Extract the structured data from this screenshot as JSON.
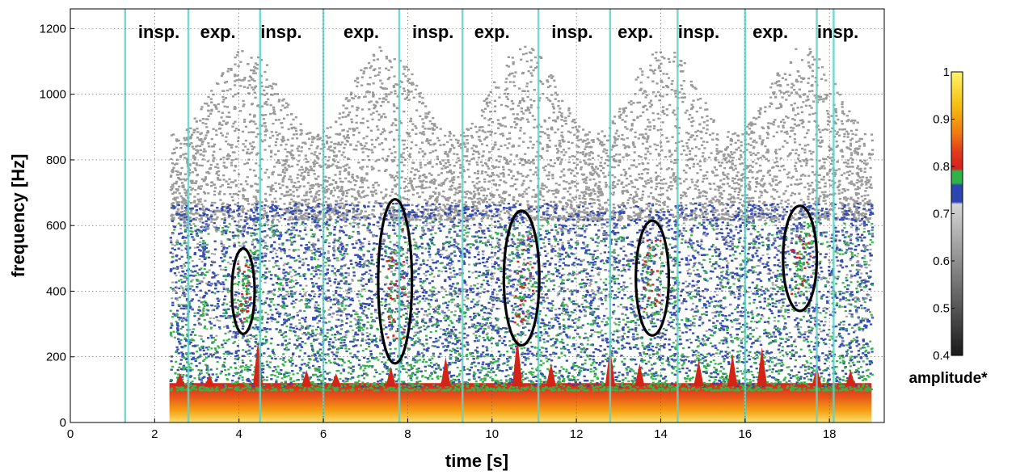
{
  "chart_data": {
    "type": "heatmap",
    "title": "",
    "xlabel": "time [s]",
    "ylabel": "frequency [Hz]",
    "xlim": [
      0,
      19.3
    ],
    "ylim": [
      0,
      1260
    ],
    "x_ticks": [
      "0",
      "2",
      "4",
      "6",
      "8",
      "10",
      "12",
      "14",
      "16",
      "18"
    ],
    "y_ticks": [
      "0",
      "200",
      "400",
      "600",
      "800",
      "1000",
      "1200"
    ],
    "grid": true,
    "phase_labels": [
      {
        "text": "insp.",
        "t": 2.1
      },
      {
        "text": "exp.",
        "t": 3.5
      },
      {
        "text": "insp.",
        "t": 5.0
      },
      {
        "text": "exp.",
        "t": 6.9
      },
      {
        "text": "insp.",
        "t": 8.6
      },
      {
        "text": "exp.",
        "t": 10.0
      },
      {
        "text": "insp.",
        "t": 11.9
      },
      {
        "text": "exp.",
        "t": 13.4
      },
      {
        "text": "insp.",
        "t": 14.9
      },
      {
        "text": "exp.",
        "t": 16.6
      },
      {
        "text": "insp.",
        "t": 18.2
      }
    ],
    "phase_boundaries_s": [
      1.3,
      2.8,
      4.5,
      6.0,
      7.8,
      9.3,
      11.1,
      12.8,
      14.4,
      16.0,
      17.7,
      18.1
    ],
    "highlight_ellipses": [
      {
        "t": 4.1,
        "f": 400,
        "t_halfwidth": 0.27,
        "f_halfheight": 130
      },
      {
        "t": 7.7,
        "f": 430,
        "t_halfwidth": 0.4,
        "f_halfheight": 250
      },
      {
        "t": 10.7,
        "f": 440,
        "t_halfwidth": 0.42,
        "f_halfheight": 205
      },
      {
        "t": 13.8,
        "f": 440,
        "t_halfwidth": 0.39,
        "f_halfheight": 175
      },
      {
        "t": 17.3,
        "f": 500,
        "t_halfwidth": 0.4,
        "f_halfheight": 160
      }
    ],
    "signal_start_s": 2.35,
    "signal_end_s": 19.0,
    "colorbar": {
      "title": "amplitude*",
      "ticks": [
        "0.4",
        "0.5",
        "0.6",
        "0.7",
        "0.8",
        "0.9",
        "1"
      ],
      "range": [
        0.4,
        1.0
      ],
      "stops": [
        {
          "v": 0.4,
          "color": "#1a1a1a"
        },
        {
          "v": 0.72,
          "color": "#d6d6d6"
        },
        {
          "v": 0.725,
          "color": "#2d45b0"
        },
        {
          "v": 0.76,
          "color": "#2d45b0"
        },
        {
          "v": 0.765,
          "color": "#2fb24a"
        },
        {
          "v": 0.79,
          "color": "#2fb24a"
        },
        {
          "v": 0.795,
          "color": "#d62020"
        },
        {
          "v": 0.83,
          "color": "#e03a1a"
        },
        {
          "v": 0.87,
          "color": "#f07a10"
        },
        {
          "v": 0.93,
          "color": "#f5c010"
        },
        {
          "v": 1.0,
          "color": "#fff46a"
        }
      ]
    },
    "colors": {
      "noise_gray": "#9a9a9a",
      "band_blue": "#2d45b0",
      "band_green": "#35b34a",
      "band_red": "#d42418",
      "band_orange": "#f08a12",
      "band_yellow": "#f8d840",
      "boundary_line": "#5fd4c8"
    }
  }
}
